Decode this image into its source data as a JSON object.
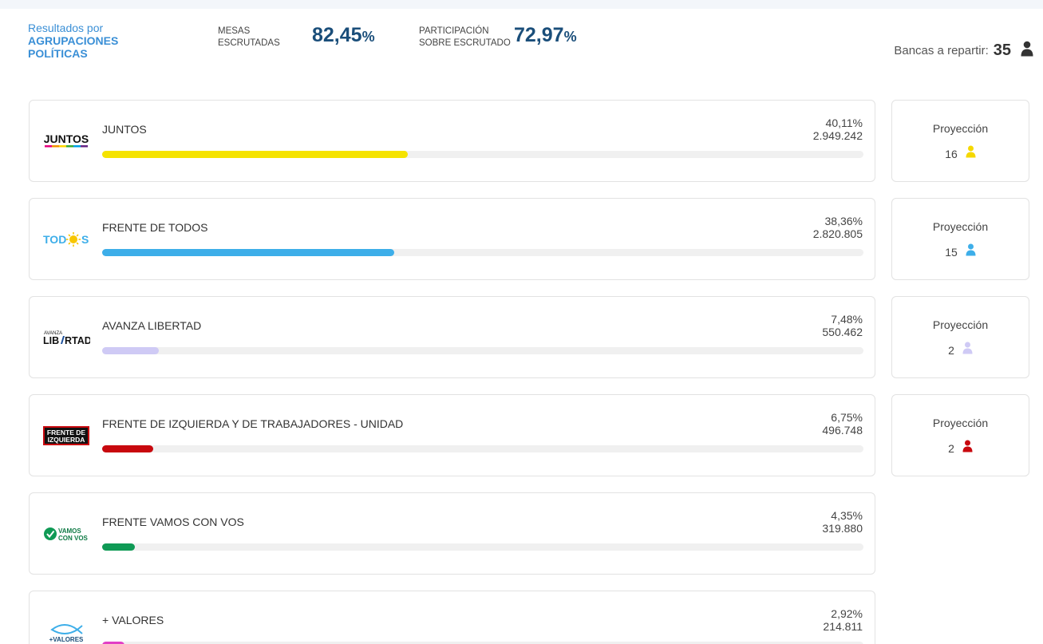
{
  "header": {
    "title_line1": "Resultados por",
    "title_line2": "AGRUPACIONES",
    "title_line3": "POLÍTICAS",
    "mesas_label_1": "MESAS",
    "mesas_label_2": "ESCRUTADAS",
    "mesas_value": "82,45",
    "mesas_unit": "%",
    "part_label_1": "PARTICIPACIÓN",
    "part_label_2": "SOBRE ESCRUTADO",
    "part_value": "72,97",
    "part_unit": "%",
    "bancas_label": "Bancas a repartir:",
    "bancas_value": "35",
    "bancas_icon": "person-icon"
  },
  "colors": {
    "accent": "#3a8fd6",
    "stat": "#1a4e7a"
  },
  "parties": [
    {
      "name": "JUNTOS",
      "pct": "40,11%",
      "votes": "2.949.242",
      "share": 0.4011,
      "color": "#f5e300",
      "logo": "JUNTOS",
      "projection": {
        "label": "Proyección",
        "seats": "16"
      }
    },
    {
      "name": "FRENTE DE TODOS",
      "pct": "38,36%",
      "votes": "2.820.805",
      "share": 0.3836,
      "color": "#3daee9",
      "logo": "TODOS",
      "projection": {
        "label": "Proyección",
        "seats": "15"
      }
    },
    {
      "name": "AVANZA LIBERTAD",
      "pct": "7,48%",
      "votes": "550.462",
      "share": 0.0748,
      "color": "#cfcaf5",
      "logo": "LIBERTAD",
      "logo_small": "AVANZA",
      "projection": {
        "label": "Proyección",
        "seats": "2"
      }
    },
    {
      "name": "FRENTE DE IZQUIERDA Y DE TRABAJADORES - UNIDAD",
      "pct": "6,75%",
      "votes": "496.748",
      "share": 0.0675,
      "color": "#c8080e",
      "logo": "FRENTE DE",
      "logo2": "IZQUIERDA",
      "projection": {
        "label": "Proyección",
        "seats": "2"
      }
    },
    {
      "name": "FRENTE VAMOS CON VOS",
      "pct": "4,35%",
      "votes": "319.880",
      "share": 0.0435,
      "color": "#0f9a55",
      "logo": "VAMOS",
      "logo2": "CON VOS"
    },
    {
      "name": "+ VALORES",
      "pct": "2,92%",
      "votes": "214.811",
      "share": 0.0292,
      "color": "#e23fc6",
      "logo": "+VALORES"
    }
  ]
}
